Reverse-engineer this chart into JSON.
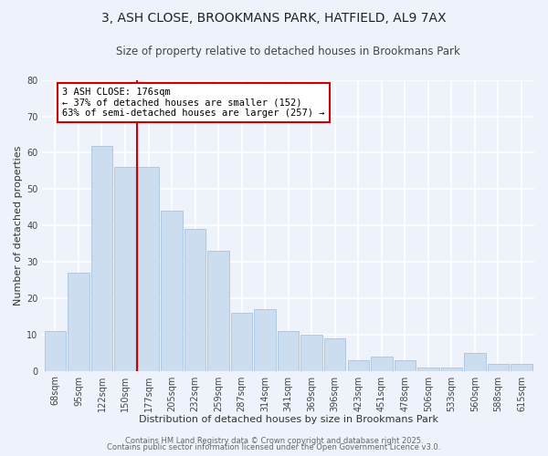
{
  "title": "3, ASH CLOSE, BROOKMANS PARK, HATFIELD, AL9 7AX",
  "subtitle": "Size of property relative to detached houses in Brookmans Park",
  "xlabel": "Distribution of detached houses by size in Brookmans Park",
  "ylabel": "Number of detached properties",
  "categories": [
    "68sqm",
    "95sqm",
    "122sqm",
    "150sqm",
    "177sqm",
    "205sqm",
    "232sqm",
    "259sqm",
    "287sqm",
    "314sqm",
    "341sqm",
    "369sqm",
    "396sqm",
    "423sqm",
    "451sqm",
    "478sqm",
    "506sqm",
    "533sqm",
    "560sqm",
    "588sqm",
    "615sqm"
  ],
  "values": [
    11,
    27,
    62,
    56,
    56,
    44,
    39,
    33,
    16,
    17,
    11,
    10,
    9,
    3,
    4,
    3,
    1,
    1,
    5,
    2,
    2
  ],
  "bar_color": "#ccddf0",
  "bar_edge_color": "#a8c4e0",
  "vline_position": 3.5,
  "vline_color": "#cc0000",
  "annotation_title": "3 ASH CLOSE: 176sqm",
  "annotation_line1": "← 37% of detached houses are smaller (152)",
  "annotation_line2": "63% of semi-detached houses are larger (257) →",
  "annotation_box_color": "#ffffff",
  "annotation_box_edge": "#cc0000",
  "ylim": [
    0,
    80
  ],
  "yticks": [
    0,
    10,
    20,
    30,
    40,
    50,
    60,
    70,
    80
  ],
  "background_color": "#eef2fb",
  "grid_color": "#ffffff",
  "footer1": "Contains HM Land Registry data © Crown copyright and database right 2025.",
  "footer2": "Contains public sector information licensed under the Open Government Licence v3.0.",
  "title_fontsize": 10,
  "subtitle_fontsize": 8.5,
  "xlabel_fontsize": 8,
  "ylabel_fontsize": 8,
  "tick_fontsize": 7,
  "footer_fontsize": 6,
  "annotation_fontsize": 7.5
}
